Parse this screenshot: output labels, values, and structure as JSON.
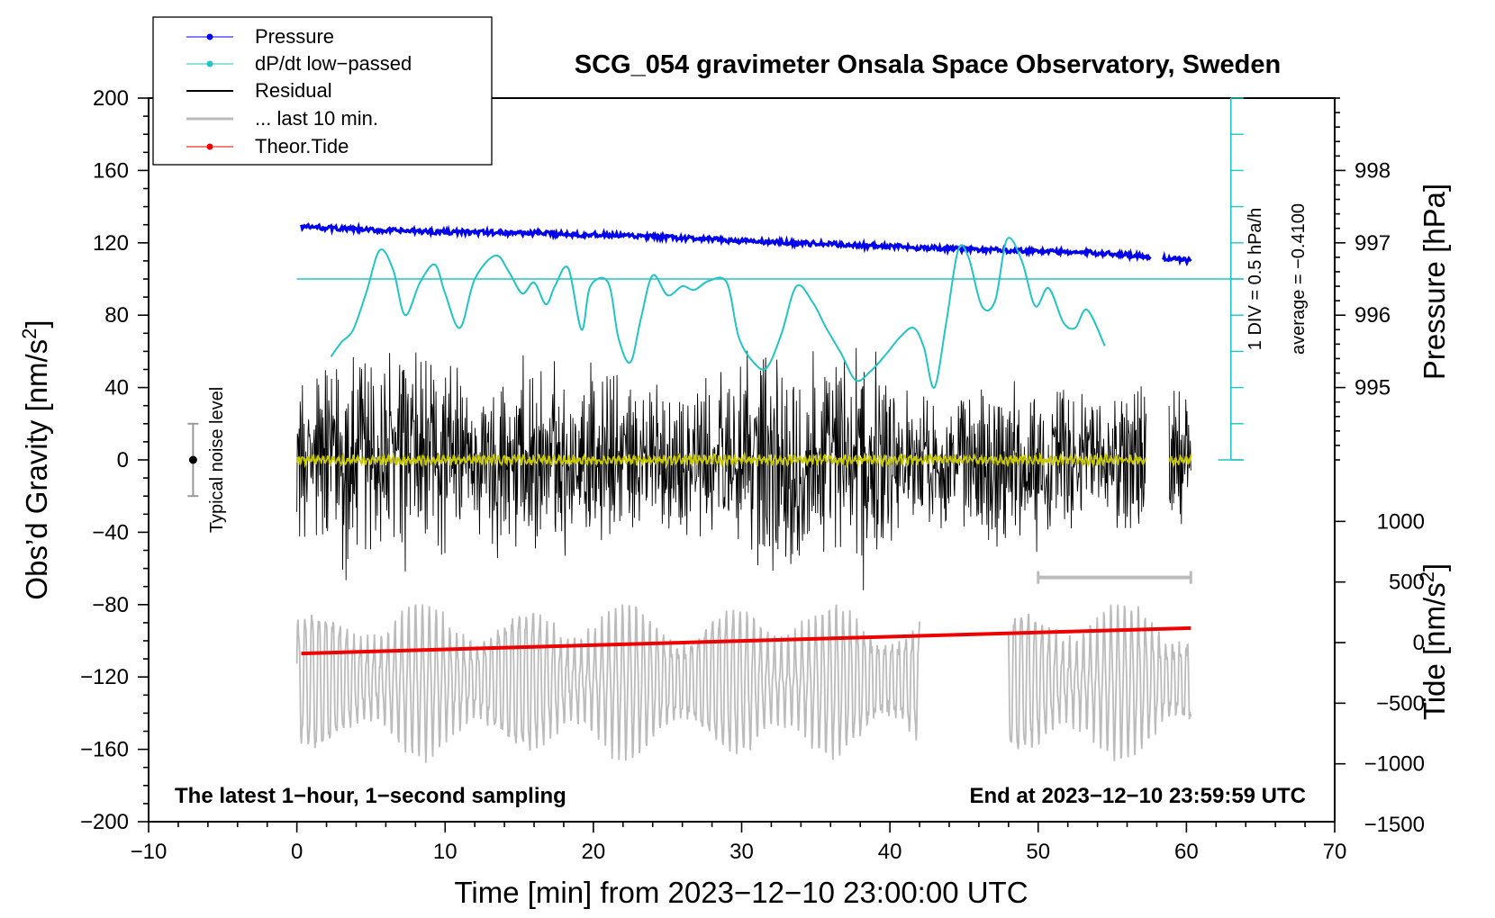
{
  "chart_data": {
    "type": "line",
    "title": "SCG_054 gravimeter Onsala Space Observatory, Sweden",
    "xlabel": "Time [min] from 2023−12−10 23:00:00 UTC",
    "ylabel_left": "Obs’d Gravity [nm/s²]",
    "ylabel_right_top": "Pressure [hPa]",
    "ylabel_right_bottom": "Tide [nm/s²]",
    "xlim": [
      -10,
      70
    ],
    "ylim": [
      -200,
      200
    ],
    "x_ticks": [
      -10,
      0,
      10,
      20,
      30,
      40,
      50,
      60,
      70
    ],
    "x_tick_labels": [
      "−10",
      "0",
      "10",
      "20",
      "30",
      "40",
      "50",
      "60",
      "70"
    ],
    "y_ticks": [
      200,
      160,
      120,
      80,
      40,
      0,
      -40,
      -80,
      -120,
      -160,
      -200
    ],
    "y_tick_labels": [
      "200",
      "160",
      "120",
      "80",
      "40",
      "0",
      "−40",
      "−80",
      "−120",
      "−160",
      "−200"
    ],
    "pressure_axis": {
      "ticks": [
        995,
        996,
        997,
        998
      ],
      "tick_labels": [
        "995",
        "996",
        "997",
        "998"
      ],
      "gravity_equiv": [
        40,
        80,
        120,
        160
      ]
    },
    "tide_axis": {
      "ticks": [
        1000,
        500,
        0,
        -500,
        -1000,
        -1500
      ],
      "tick_labels": [
        "1000",
        "500",
        "0",
        "−500",
        "−1000",
        "−1500"
      ],
      "gravity_equiv": [
        -34,
        -67.5,
        -101,
        -134.5,
        -168,
        -201.5
      ]
    },
    "legend": {
      "position": "top-left",
      "entries": [
        {
          "label": "Pressure",
          "color": "#0000ee",
          "marker": "dot"
        },
        {
          "label": "dP/dt low−passed",
          "color": "#22c4c4",
          "marker": "dot"
        },
        {
          "label": "Residual",
          "color": "#000000",
          "marker": "line"
        },
        {
          "label": "... last 10 min.",
          "color": "#bbbbbb",
          "marker": "line"
        },
        {
          "label": "Theor.Tide",
          "color": "#ee0000",
          "marker": "dot"
        }
      ]
    },
    "series": [
      {
        "name": "Pressure",
        "color": "#0000ee",
        "x": [
          0.3,
          5,
          10,
          15,
          20,
          25,
          30,
          35,
          40,
          45,
          50,
          55,
          57.5,
          58.5,
          60.3
        ],
        "values": [
          129,
          127,
          126,
          125.5,
          124.5,
          123,
          121,
          119.5,
          118,
          116.5,
          115.5,
          114,
          112.5,
          111.5,
          110
        ]
      },
      {
        "name": "dP/dt low−passed",
        "color": "#22c4c4",
        "x": [
          2.3,
          3,
          3.8,
          4.7,
          5.6,
          6.5,
          7.3,
          8.3,
          9.3,
          10,
          11,
          12,
          13.4,
          14.3,
          15.2,
          16,
          16.8,
          17.4,
          18.3,
          19.2,
          19.8,
          21,
          21.7,
          22.5,
          23.2,
          24,
          25,
          26,
          26.8,
          27.8,
          29,
          29.8,
          30.8,
          31.7,
          32.7,
          33.7,
          34.8,
          35.7,
          36.7,
          37.7,
          38.7,
          39.7,
          40.7,
          41.6,
          42.3,
          43.0,
          43.8,
          44.6,
          45.3,
          46.2,
          47.1,
          47.9,
          48.9,
          49.8,
          50.7,
          51.7,
          52.5,
          53.3,
          54.5
        ],
        "values": [
          57,
          65,
          72,
          93,
          116,
          105,
          80,
          98,
          108,
          92,
          73,
          100,
          113,
          104,
          92,
          98,
          86,
          96,
          106,
          72,
          96,
          98,
          67,
          54,
          78,
          102,
          91,
          96,
          94,
          99,
          98,
          68,
          54,
          51,
          70,
          96,
          87,
          73,
          59,
          44,
          49,
          58,
          68,
          73,
          62,
          40,
          76,
          116,
          112,
          85,
          88,
          122,
          110,
          85,
          95,
          76,
          73,
          83,
          63
        ]
      },
      {
        "name": "Residual",
        "color": "#000000",
        "x_range": [
          0.0,
          60.3
        ],
        "y_envelope": [
          -73,
          73
        ]
      },
      {
        "name": "... last 10 min.",
        "color": "#bbbbbb",
        "x_range": [
          50.0,
          60.3
        ],
        "y_range": [
          -164,
          -76
        ]
      },
      {
        "name": "Theor.Tide",
        "color": "#ee0000",
        "x": [
          0.3,
          60.3
        ],
        "values": [
          -107,
          -93
        ]
      }
    ],
    "reference_line": {
      "label": "average = −0.4100",
      "x_range": [
        0.0,
        63.0
      ],
      "y": 100
    },
    "scale_bar": {
      "label": "1 DIV = 0.5 hPa/h",
      "x": 63,
      "y_range": [
        0,
        200
      ]
    },
    "noise_bar": {
      "label": "Typical noise level",
      "x": -7,
      "center": 0,
      "range": [
        -20,
        20
      ]
    },
    "annotations": {
      "bottom_left": "The latest 1−hour, 1−second sampling",
      "bottom_right": "End at 2023−12−10 23:59:59 UTC"
    },
    "grid": false
  }
}
